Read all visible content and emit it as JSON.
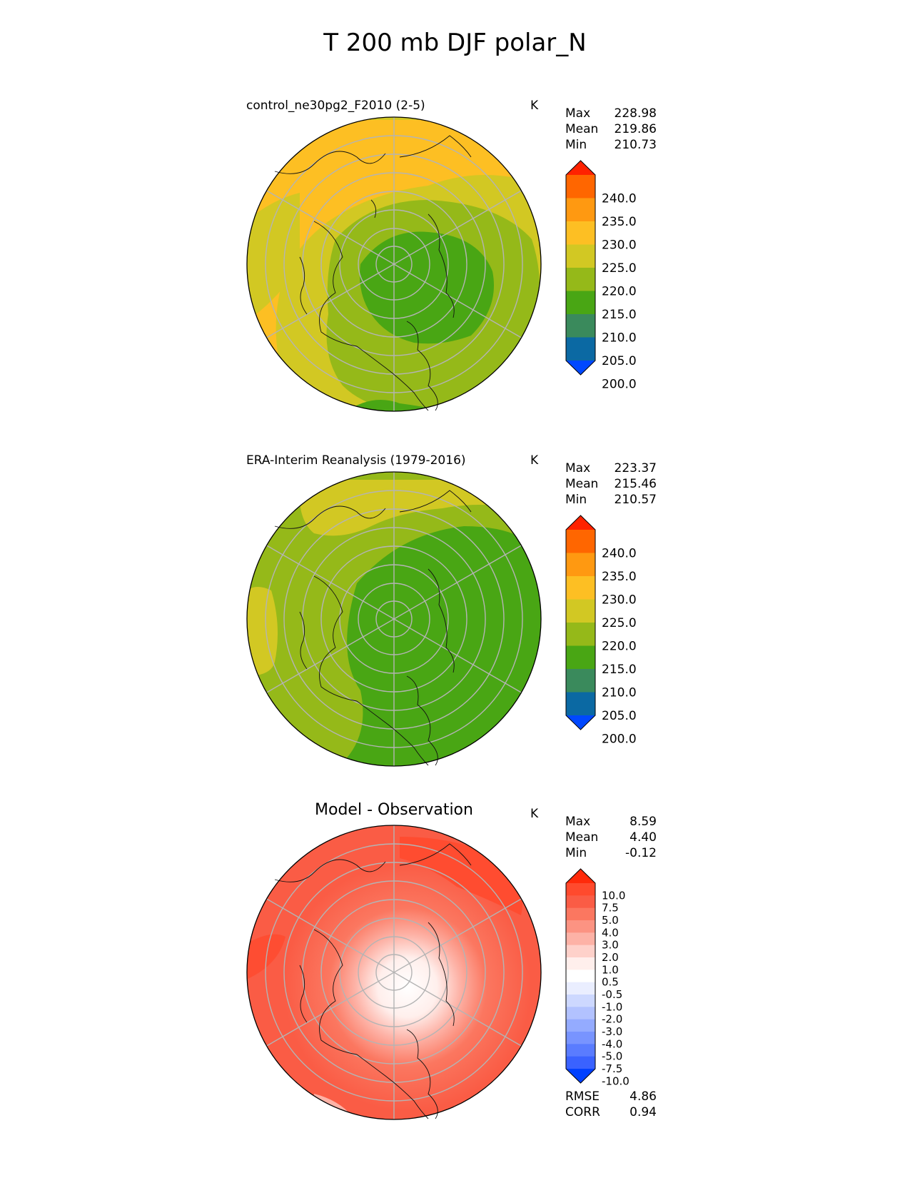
{
  "title": "T 200 mb DJF polar_N",
  "chart_data": [
    {
      "type": "heatmap",
      "projection": "north polar stereographic",
      "title": "control_ne30pg2_F2010 (2-5)",
      "units": "K",
      "stats": {
        "max": "228.98",
        "mean": "219.86",
        "min": "210.73"
      },
      "colorbar": {
        "ticks": [
          "240.0",
          "235.0",
          "230.0",
          "225.0",
          "220.0",
          "215.0",
          "210.0",
          "205.0",
          "200.0"
        ],
        "colors": [
          "#ff2200",
          "#ff6600",
          "#ff9911",
          "#fdbf23",
          "#d2c823",
          "#95b919",
          "#49a614",
          "#3a8a5c",
          "#0b69a3",
          "#0048ff"
        ]
      }
    },
    {
      "type": "heatmap",
      "projection": "north polar stereographic",
      "title": "ERA-Interim Reanalysis (1979-2016)",
      "units": "K",
      "stats": {
        "max": "223.37",
        "mean": "215.46",
        "min": "210.57"
      },
      "colorbar": {
        "ticks": [
          "240.0",
          "235.0",
          "230.0",
          "225.0",
          "220.0",
          "215.0",
          "210.0",
          "205.0",
          "200.0"
        ],
        "colors": [
          "#ff2200",
          "#ff6600",
          "#ff9911",
          "#fdbf23",
          "#d2c823",
          "#95b919",
          "#49a614",
          "#3a8a5c",
          "#0b69a3",
          "#0048ff"
        ]
      }
    },
    {
      "type": "heatmap",
      "projection": "north polar stereographic",
      "title": "Model - Observation",
      "units": "K",
      "stats": {
        "max": "8.59",
        "mean": "4.40",
        "min": "-0.12",
        "rmse": "4.86",
        "corr": "0.94"
      },
      "colorbar": {
        "ticks": [
          "10.0",
          "7.5",
          "5.0",
          "4.0",
          "3.0",
          "2.0",
          "1.0",
          "0.5",
          "-0.5",
          "-1.0",
          "-2.0",
          "-3.0",
          "-4.0",
          "-5.0",
          "-7.5",
          "-10.0"
        ],
        "colors": [
          "#ff2a0a",
          "#ff4a2d",
          "#fa5c45",
          "#fb7760",
          "#fc9382",
          "#fdb2a6",
          "#fed1ca",
          "#ffefec",
          "#ffffff",
          "#eaeeff",
          "#cdd8ff",
          "#b2c2ff",
          "#94abff",
          "#7894ff",
          "#5a7cff",
          "#3a62ff",
          "#0040ff"
        ]
      }
    }
  ],
  "labels": {
    "max": "Max",
    "mean": "Mean",
    "min": "Min",
    "rmse": "RMSE",
    "corr": "CORR"
  }
}
